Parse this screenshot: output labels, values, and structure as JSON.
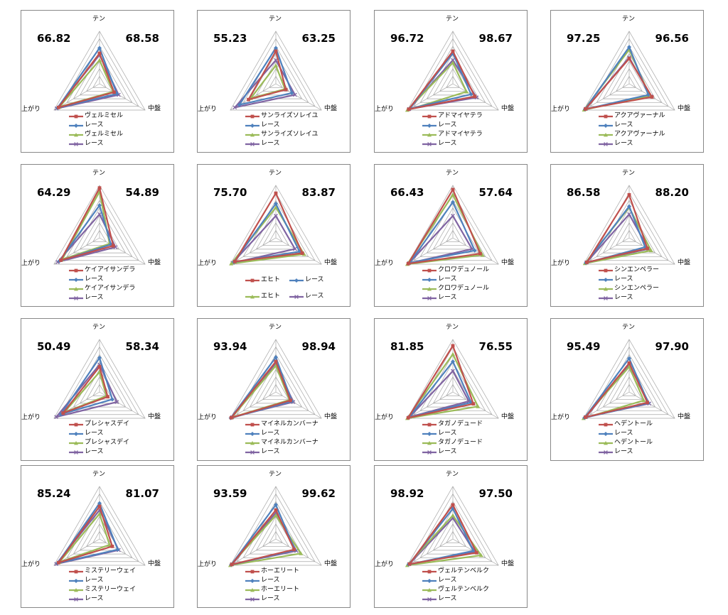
{
  "axes": [
    "テン",
    "中盤",
    "上がり"
  ],
  "colors": {
    "horse": "#c0504d",
    "race": "#4f81bd",
    "horse_prev": "#9bbb59",
    "race_prev": "#8064a2"
  },
  "chart_data": [
    {
      "type": "radar",
      "left_score": "66.82",
      "right_score": "68.58",
      "legend": [
        "ヴェルミセル",
        "レース",
        "ヴェルミセル",
        "レース"
      ],
      "series": [
        {
          "values": [
            0.58,
            0.32,
            0.9
          ]
        },
        {
          "values": [
            0.68,
            0.38,
            0.92
          ]
        },
        {
          "values": [
            0.45,
            0.3,
            0.88
          ]
        },
        {
          "values": [
            0.55,
            0.42,
            0.94
          ]
        }
      ]
    },
    {
      "type": "radar",
      "left_score": "55.23",
      "right_score": "63.25",
      "legend": [
        "サンライズソレイユ",
        "レース",
        "サンライズソレイユ",
        "レース"
      ],
      "series": [
        {
          "values": [
            0.62,
            0.22,
            0.6
          ]
        },
        {
          "values": [
            0.68,
            0.35,
            0.8
          ]
        },
        {
          "values": [
            0.35,
            0.2,
            0.55
          ]
        },
        {
          "values": [
            0.45,
            0.42,
            0.9
          ]
        }
      ]
    },
    {
      "type": "radar",
      "left_score": "96.72",
      "right_score": "98.67",
      "legend": [
        "アドマイヤテラ",
        "レース",
        "アドマイヤテラ",
        "レース"
      ],
      "series": [
        {
          "values": [
            0.62,
            0.48,
            0.97
          ]
        },
        {
          "values": [
            0.58,
            0.4,
            0.95
          ]
        },
        {
          "values": [
            0.4,
            0.3,
            1.0
          ]
        },
        {
          "values": [
            0.45,
            0.52,
            0.96
          ]
        }
      ]
    },
    {
      "type": "radar",
      "left_score": "97.25",
      "right_score": "96.56",
      "legend": [
        "アクアヴァーナル",
        "レース",
        "アクアヴァーナル",
        "レース"
      ],
      "series": [
        {
          "values": [
            0.48,
            0.5,
            0.96
          ]
        },
        {
          "values": [
            0.7,
            0.42,
            0.97
          ]
        },
        {
          "values": [
            0.65,
            0.45,
            0.99
          ]
        },
        {
          "values": [
            0.5,
            0.48,
            0.95
          ]
        }
      ]
    },
    {
      "type": "radar",
      "left_score": "64.29",
      "right_score": "54.89",
      "legend": [
        "ケイアイサンデラ",
        "レース",
        "ケイアイサンデラ",
        "レース"
      ],
      "series": [
        {
          "values": [
            0.95,
            0.3,
            0.85
          ]
        },
        {
          "values": [
            0.62,
            0.25,
            0.88
          ]
        },
        {
          "values": [
            0.88,
            0.22,
            0.82
          ]
        },
        {
          "values": [
            0.45,
            0.35,
            0.92
          ]
        }
      ]
    },
    {
      "type": "radar",
      "left_score": "75.70",
      "right_score": "83.87",
      "legend_layout": "two-col",
      "legend": [
        "エヒト",
        "レース",
        "エヒト",
        "レース"
      ],
      "series": [
        {
          "values": [
            0.85,
            0.58,
            0.9
          ]
        },
        {
          "values": [
            0.65,
            0.52,
            0.92
          ]
        },
        {
          "values": [
            0.58,
            0.62,
            0.98
          ]
        },
        {
          "values": [
            0.42,
            0.42,
            0.95
          ]
        }
      ]
    },
    {
      "type": "radar",
      "left_score": "66.43",
      "right_score": "57.64",
      "legend": [
        "クロワデュノール",
        "レース",
        "クロワデュノール",
        "レース"
      ],
      "series": [
        {
          "values": [
            0.92,
            0.6,
            0.98
          ]
        },
        {
          "values": [
            0.68,
            0.48,
            0.95
          ]
        },
        {
          "values": [
            0.82,
            0.65,
            1.0
          ]
        },
        {
          "values": [
            0.42,
            0.42,
            0.96
          ]
        }
      ]
    },
    {
      "type": "radar",
      "left_score": "86.58",
      "right_score": "88.20",
      "legend": [
        "シンエンペラー",
        "レース",
        "シンエンペラー",
        "レース"
      ],
      "series": [
        {
          "values": [
            0.82,
            0.4,
            0.93
          ]
        },
        {
          "values": [
            0.6,
            0.35,
            0.95
          ]
        },
        {
          "values": [
            0.58,
            0.48,
            0.97
          ]
        },
        {
          "values": [
            0.45,
            0.42,
            0.94
          ]
        }
      ]
    },
    {
      "type": "radar",
      "left_score": "50.49",
      "right_score": "58.34",
      "legend": [
        "プレシャスデイ",
        "レース",
        "プレシャスデイ",
        "レース"
      ],
      "series": [
        {
          "values": [
            0.48,
            0.18,
            0.8
          ]
        },
        {
          "values": [
            0.65,
            0.28,
            0.85
          ]
        },
        {
          "values": [
            0.38,
            0.15,
            0.78
          ]
        },
        {
          "values": [
            0.52,
            0.38,
            0.95
          ]
        }
      ]
    },
    {
      "type": "radar",
      "left_score": "93.94",
      "right_score": "98.94",
      "legend": [
        "マイネルカンバーナ",
        "レース",
        "マイネルカンバーナ",
        "レース"
      ],
      "series": [
        {
          "values": [
            0.58,
            0.32,
            0.98
          ]
        },
        {
          "values": [
            0.66,
            0.35,
            0.99
          ]
        },
        {
          "values": [
            0.5,
            0.3,
            0.97
          ]
        },
        {
          "values": [
            0.55,
            0.38,
            0.96
          ]
        }
      ]
    },
    {
      "type": "radar",
      "left_score": "81.85",
      "right_score": "76.55",
      "legend": [
        "タガノデュード",
        "レース",
        "タガノデュード",
        "レース"
      ],
      "series": [
        {
          "values": [
            0.88,
            0.45,
            0.98
          ]
        },
        {
          "values": [
            0.58,
            0.4,
            0.96
          ]
        },
        {
          "values": [
            0.72,
            0.55,
            1.0
          ]
        },
        {
          "values": [
            0.4,
            0.35,
            0.95
          ]
        }
      ]
    },
    {
      "type": "radar",
      "left_score": "95.49",
      "right_score": "97.90",
      "legend": [
        "ヘデントール",
        "レース",
        "ヘデントール",
        "レース"
      ],
      "series": [
        {
          "values": [
            0.55,
            0.4,
            0.96
          ]
        },
        {
          "values": [
            0.64,
            0.42,
            0.98
          ]
        },
        {
          "values": [
            0.48,
            0.32,
            1.0
          ]
        },
        {
          "values": [
            0.52,
            0.44,
            0.95
          ]
        }
      ]
    },
    {
      "type": "radar",
      "left_score": "85.24",
      "right_score": "81.07",
      "legend": [
        "ミステリーウェイ",
        "レース",
        "ミステリーウェイ",
        "レース"
      ],
      "series": [
        {
          "values": [
            0.62,
            0.28,
            0.9
          ]
        },
        {
          "values": [
            0.68,
            0.4,
            0.92
          ]
        },
        {
          "values": [
            0.48,
            0.22,
            0.88
          ]
        },
        {
          "values": [
            0.55,
            0.42,
            0.95
          ]
        }
      ]
    },
    {
      "type": "radar",
      "left_score": "93.59",
      "right_score": "99.62",
      "legend": [
        "ホーエリート",
        "レース",
        "ホーエリート",
        "レース"
      ],
      "series": [
        {
          "values": [
            0.55,
            0.4,
            0.97
          ]
        },
        {
          "values": [
            0.65,
            0.42,
            0.98
          ]
        },
        {
          "values": [
            0.45,
            0.55,
            1.0
          ]
        },
        {
          "values": [
            0.5,
            0.45,
            0.96
          ]
        }
      ]
    },
    {
      "type": "radar",
      "left_score": "98.92",
      "right_score": "97.50",
      "legend": [
        "ヴェルテンベルク",
        "レース",
        "ヴェルテンベルク",
        "レース"
      ],
      "series": [
        {
          "values": [
            0.65,
            0.52,
            0.95
          ]
        },
        {
          "values": [
            0.58,
            0.45,
            0.97
          ]
        },
        {
          "values": [
            0.45,
            0.62,
            1.0
          ]
        },
        {
          "values": [
            0.4,
            0.48,
            0.96
          ]
        }
      ]
    }
  ]
}
